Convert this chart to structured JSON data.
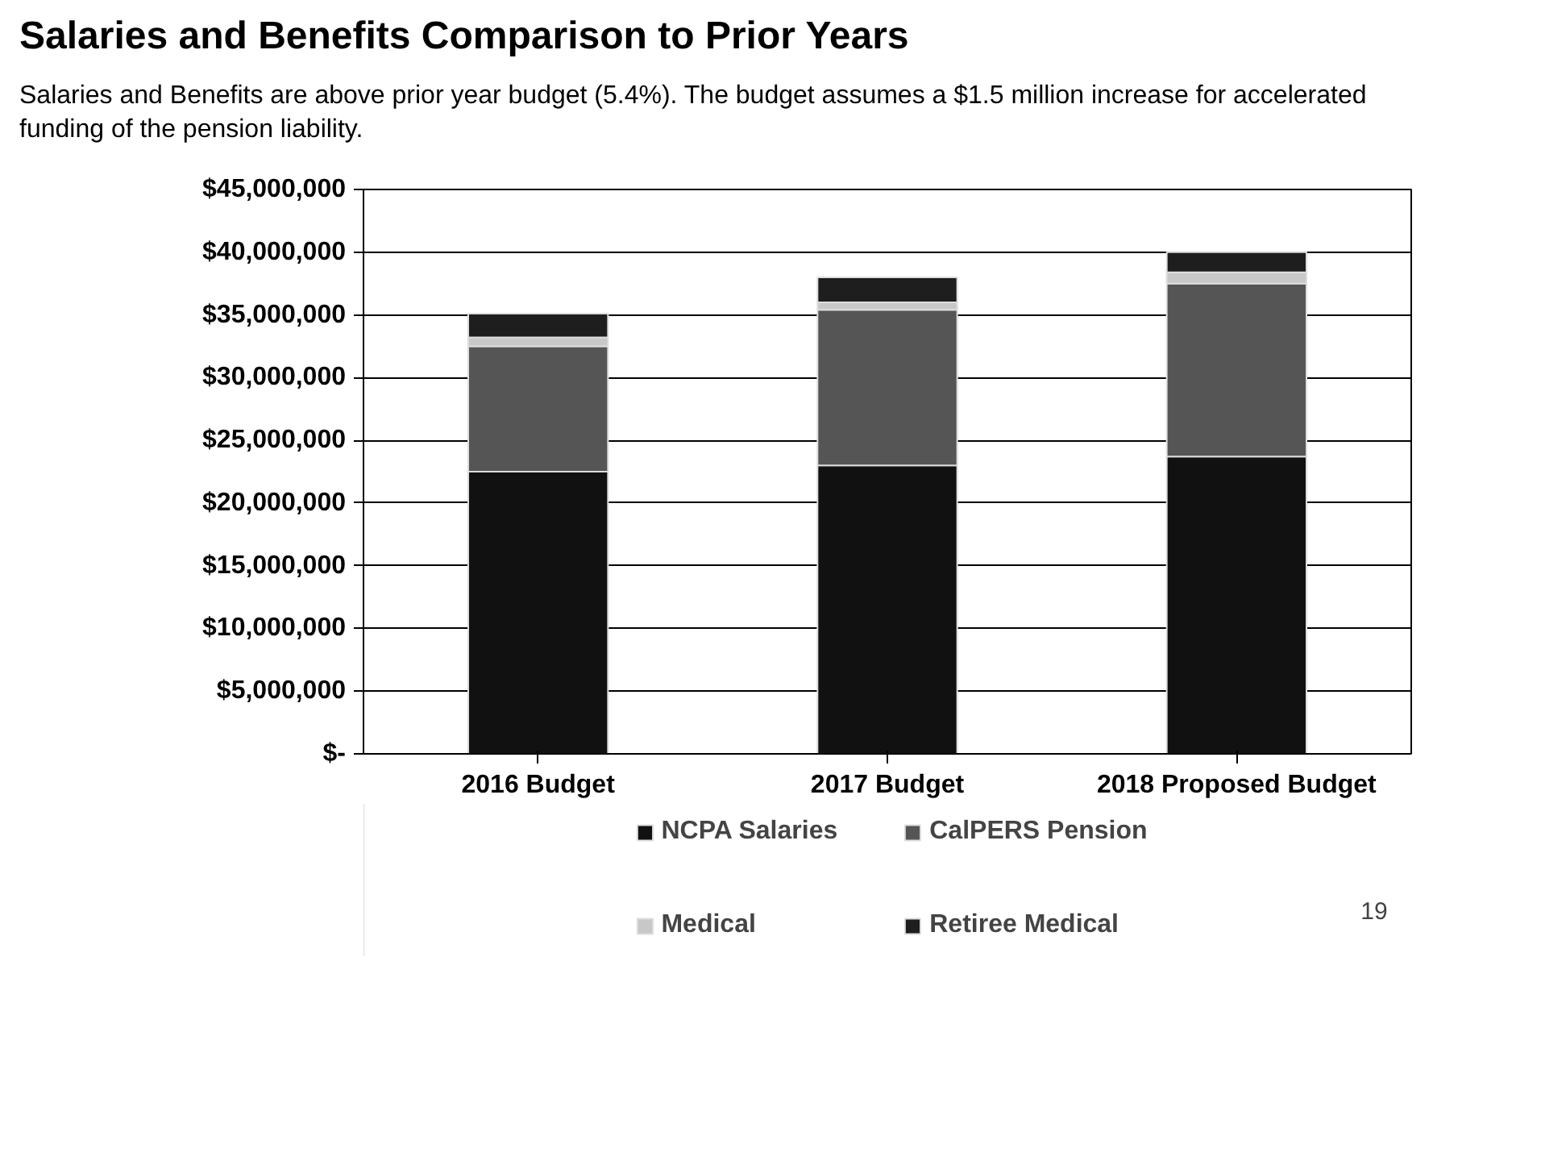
{
  "chart_data": {
    "type": "bar",
    "stacked": true,
    "title": "Salaries and Benefits Comparison to Prior Years",
    "subtitle": "Salaries and Benefits are above prior year budget (5.4%).  The budget assumes a $1.5 million increase for accelerated funding of the pension liability.",
    "categories": [
      "2016 Budget",
      "2017 Budget",
      "2018 Proposed Budget"
    ],
    "series": [
      {
        "name": "NCPA Salaries",
        "color": "#111111",
        "values": [
          22500000,
          23000000,
          23700000
        ]
      },
      {
        "name": "CalPERS Pension",
        "color": "#555555",
        "values": [
          10000000,
          12400000,
          13800000
        ]
      },
      {
        "name": "Medical",
        "color": "#c8c8c8",
        "values": [
          700000,
          600000,
          900000
        ]
      },
      {
        "name": "Retiree Medical",
        "color": "#1e1e1e",
        "values": [
          1900000,
          2000000,
          1600000
        ]
      }
    ],
    "ylim": [
      0,
      45000000
    ],
    "yticks": [
      {
        "value": 0,
        "label": "$-"
      },
      {
        "value": 5000000,
        "label": "$5,000,000"
      },
      {
        "value": 10000000,
        "label": "$10,000,000"
      },
      {
        "value": 15000000,
        "label": "$15,000,000"
      },
      {
        "value": 20000000,
        "label": "$20,000,000"
      },
      {
        "value": 25000000,
        "label": "$25,000,000"
      },
      {
        "value": 30000000,
        "label": "$30,000,000"
      },
      {
        "value": 35000000,
        "label": "$35,000,000"
      },
      {
        "value": 40000000,
        "label": "$40,000,000"
      },
      {
        "value": 45000000,
        "label": "$45,000,000"
      }
    ],
    "grid": "y",
    "legend": "bottom",
    "annotations": [
      "19"
    ]
  }
}
